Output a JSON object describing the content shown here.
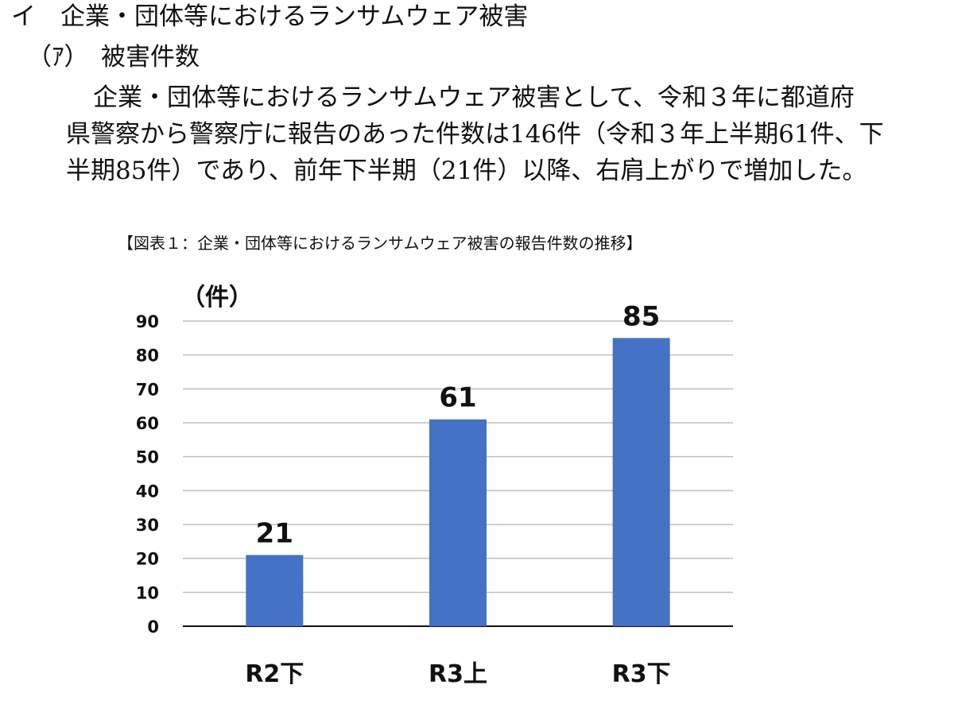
{
  "document": {
    "heading": "イ　企業・団体等におけるランサムウェア被害",
    "subheading": "（ｱ）　被害件数",
    "paragraph_lines": [
      "企業・団体等におけるランサムウェア被害として、令和３年に都道府",
      "県警察から警察庁に報告のあった件数は146件（令和３年上半期61件、下",
      "半期85件）であり、前年下半期（21件）以降、右肩上がりで増加した。"
    ],
    "caption": "【図表１：企業・団体等におけるランサムウェア被害の報告件数の推移】"
  },
  "chart_data": {
    "type": "bar",
    "title": "",
    "ylabel": "（件）",
    "xlabel": "",
    "categories": [
      "R2下",
      "R3上",
      "R3下"
    ],
    "values": [
      21,
      61,
      85
    ],
    "data_labels": [
      "21",
      "61",
      "85"
    ],
    "ylim": [
      0,
      90
    ],
    "yticks": [
      "0",
      "10",
      "20",
      "30",
      "40",
      "50",
      "60",
      "70",
      "80",
      "90"
    ],
    "grid": true,
    "legend": "none",
    "bar_color": "#4472C4",
    "grid_color": "#BFBFBF"
  }
}
